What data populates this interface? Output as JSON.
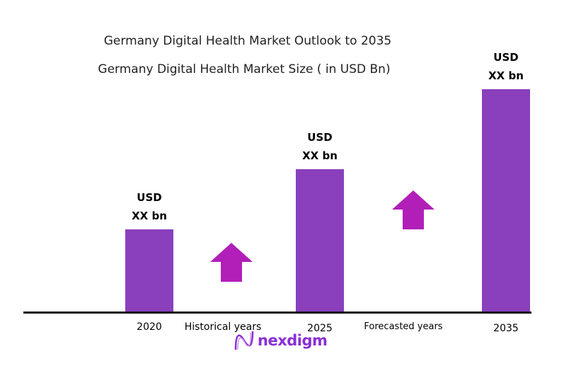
{
  "chart_data": {
    "type": "bar",
    "title": "Germany Digital Health Market Outlook to 2035",
    "subtitle": "Germany Digital Health  Market Size  ( in USD Bn)",
    "categories": [
      "2020",
      "2025",
      "2035"
    ],
    "relative_values": [
      0.37,
      0.64,
      1.0
    ],
    "data_labels": [
      {
        "line1": "USD",
        "line2": "XX bn"
      },
      {
        "line1": "USD",
        "line2": "XX bn"
      },
      {
        "line1": "USD",
        "line2": "XX bn"
      }
    ],
    "period_labels": [
      "Historical years",
      "Forecasted years"
    ],
    "bar_color": "#8a3fbd",
    "arrow_color": "#b11fb8",
    "grid": false
  },
  "logo": {
    "text": "nexdigm",
    "color": "#8a2ed6"
  }
}
